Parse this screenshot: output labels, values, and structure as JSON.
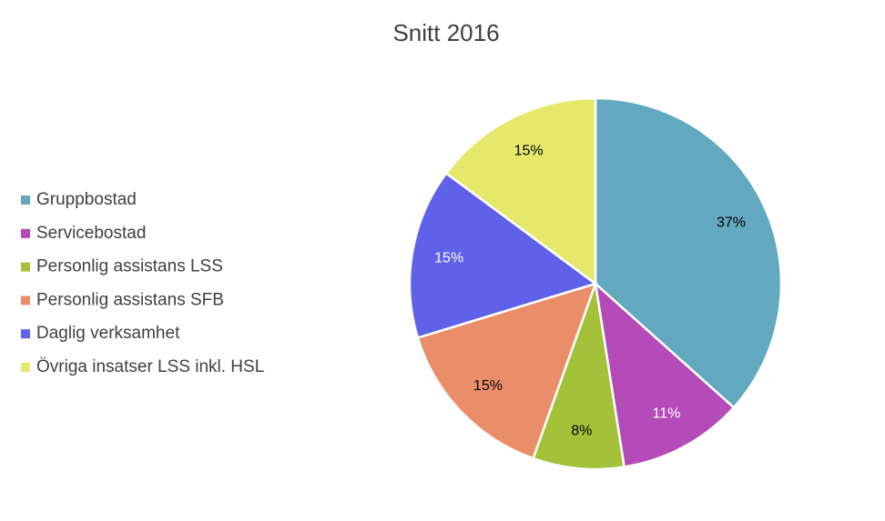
{
  "chart_data": {
    "type": "pie",
    "title": "Snitt 2016",
    "categories": [
      "Gruppbostad",
      "Servicebostad",
      "Personlig assistans LSS",
      "Personlig assistans SFB",
      "Daglig verksamhet",
      "Övriga insatser LSS inkl. HSL"
    ],
    "values": [
      37,
      11,
      8,
      15,
      15,
      15
    ],
    "value_labels": [
      "37%",
      "11%",
      "8%",
      "15%",
      "15%",
      "15%"
    ],
    "colors": [
      "#62a9c0",
      "#b44bb8",
      "#a3c23a",
      "#ea8e6a",
      "#5f62e8",
      "#e6e86c"
    ],
    "label_colors": [
      "#000000",
      "#ffffff",
      "#000000",
      "#000000",
      "#ffffff",
      "#000000"
    ],
    "legend": "left"
  }
}
